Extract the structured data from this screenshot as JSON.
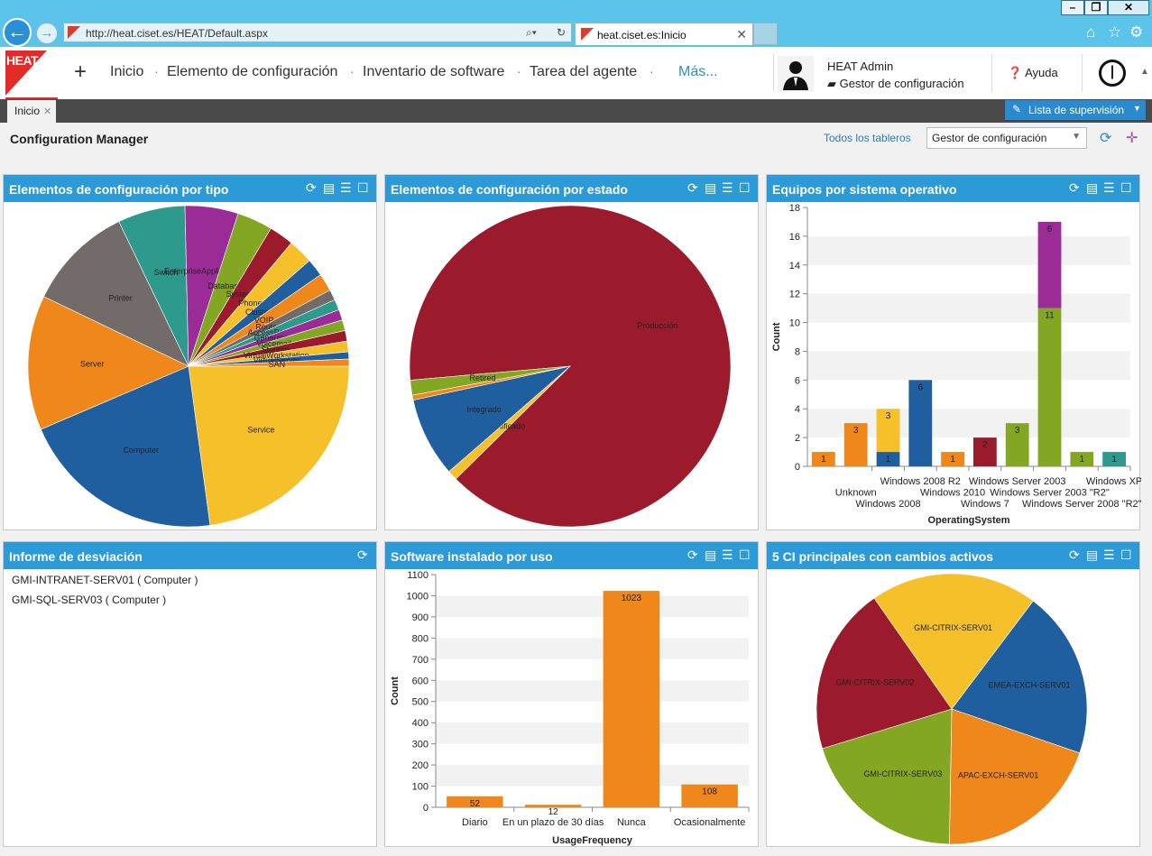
{
  "browser": {
    "url": "http://heat.ciset.es/HEAT/Default.aspx",
    "tab_title": "heat.ciset.es:Inicio"
  },
  "app": {
    "logo": "HEAT",
    "nav": [
      "Inicio",
      "Elemento de configuración",
      "Inventario de software",
      "Tarea del agente"
    ],
    "more": "Más...",
    "user_name": "HEAT Admin",
    "user_role": "Gestor de configuración",
    "help": "Ayuda"
  },
  "tabs": {
    "inicio": "Inicio",
    "watchlist": "Lista de supervisión"
  },
  "dashboard": {
    "title": "Configuration Manager",
    "all_boards": "Todos los tableros",
    "selected_board": "Gestor de configuración"
  },
  "panels": {
    "p1": "Elementos de configuración por tipo",
    "p2": "Elementos de configuración por estado",
    "p3": "Equipos por sistema operativo",
    "p4": "Informe de desviación",
    "p5": "Software instalado por uso",
    "p6": "5 CI principales con cambios activos"
  },
  "deviation_report": [
    "GMI-INTRANET-SERV01 ( Computer )",
    "GMI-SQL-SERV03 ( Computer )"
  ],
  "chart_data": [
    {
      "type": "pie",
      "slices": [
        {
          "label": "Service",
          "value": 64,
          "color": "#f6c02b"
        },
        {
          "label": "Computer",
          "value": 58,
          "color": "#1f5fa0"
        },
        {
          "label": "Server",
          "value": 38,
          "color": "#f0871a"
        },
        {
          "label": "Printer",
          "value": 30,
          "color": "#736a6a"
        },
        {
          "label": "Switch",
          "value": 19,
          "color": "#2e9a8e"
        },
        {
          "label": "EnterpriseApplication",
          "value": 15,
          "color": "#9b2b96"
        },
        {
          "label": "Database",
          "value": 10,
          "color": "#84a723"
        },
        {
          "label": "System",
          "value": 7,
          "color": "#9b1b2c"
        },
        {
          "label": "Phone",
          "value": 7,
          "color": "#f6c02b"
        },
        {
          "label": "Cluster",
          "value": 5,
          "color": "#1f5fa0"
        },
        {
          "label": "VOIP",
          "value": 5,
          "color": "#f0871a"
        },
        {
          "label": "Router",
          "value": 3,
          "color": "#736a6a"
        },
        {
          "label": "AccessPoint",
          "value": 3,
          "color": "#2e9a8e"
        },
        {
          "label": "Generator",
          "value": 3,
          "color": "#9b2b96"
        },
        {
          "label": "Voicemail",
          "value": 3,
          "color": "#84a723"
        },
        {
          "label": "Storage",
          "value": 3,
          "color": "#9b1b2c"
        },
        {
          "label": "VirtualWorkstation",
          "value": 3,
          "color": "#f6c02b"
        },
        {
          "label": "VirtualServer",
          "value": 2,
          "color": "#1f5fa0"
        },
        {
          "label": "SAN",
          "value": 2,
          "color": "#f0871a"
        }
      ]
    },
    {
      "type": "pie",
      "slices": [
        {
          "label": "Producción",
          "value": 89,
          "color": "#9b1b2c"
        },
        {
          "label": "Planificado",
          "value": 1,
          "color": "#f6c02b"
        },
        {
          "label": "Integrado",
          "value": 8,
          "color": "#1f5fa0"
        },
        {
          "label": "",
          "value": 0.5,
          "color": "#f0871a"
        },
        {
          "label": "Retired",
          "value": 1.5,
          "color": "#84a723"
        }
      ]
    },
    {
      "type": "bar",
      "ylabel": "Count",
      "xlabel": "OperatingSystem",
      "ylim": [
        0,
        18
      ],
      "yticks": [
        0,
        2,
        4,
        6,
        8,
        10,
        12,
        14,
        16,
        18
      ],
      "categories": [
        "",
        "Unknown",
        "Windows 2008",
        "Windows 2008 R2",
        "Windows 2010",
        "Windows 7",
        "Windows Server 2003",
        "Windows Server 2003 \"R2\"",
        "Windows Server 2008 \"R2\"",
        "Windows XP"
      ],
      "series": [
        {
          "values": [
            1,
            3,
            1,
            6,
            1,
            2,
            3,
            11,
            1,
            1
          ],
          "colors": [
            "#f0871a",
            "#f0871a",
            "#1f5fa0",
            "#1f5fa0",
            "#f0871a",
            "#9b1b2c",
            "#84a723",
            "#84a723",
            "#84a723",
            "#2e9a8e"
          ]
        },
        {
          "values": [
            0,
            0,
            3,
            0,
            0,
            0,
            0,
            6,
            0,
            0
          ],
          "colors": [
            "",
            "",
            "#f6c02b",
            "",
            "",
            "",
            "",
            "#9b2b96",
            "",
            ""
          ]
        }
      ]
    },
    {
      "type": "bar",
      "ylabel": "Count",
      "xlabel": "UsageFrequency",
      "ylim": [
        0,
        1100
      ],
      "yticks": [
        0,
        100,
        200,
        300,
        400,
        500,
        600,
        700,
        800,
        900,
        1000,
        1100
      ],
      "categories": [
        "Diario",
        "En un plazo de 30 días",
        "Nunca",
        "Ocasionalmente"
      ],
      "values": [
        52,
        12,
        1023,
        108
      ],
      "color": "#f0871a"
    },
    {
      "type": "pie",
      "slices": [
        {
          "label": "EMEA-EXCH-SERV01",
          "value": 20,
          "color": "#1f5fa0"
        },
        {
          "label": "APAC-EXCH-SERV01",
          "value": 20,
          "color": "#f0871a"
        },
        {
          "label": "GMI-CITRIX-SERV03",
          "value": 20,
          "color": "#84a723"
        },
        {
          "label": "GMI-CITRIX-SERV02",
          "value": 20,
          "color": "#9b1b2c"
        },
        {
          "label": "GMI-CITRIX-SERV01",
          "value": 20,
          "color": "#f6c02b"
        }
      ]
    }
  ]
}
